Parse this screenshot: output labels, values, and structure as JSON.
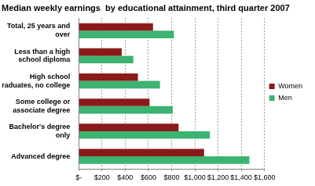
{
  "chart_data": {
    "type": "bar",
    "orientation": "horizontal",
    "title": "Median weekly earnings  by educational attainment, third quarter 2007",
    "categories": [
      "Total, 25 years and over",
      "Less than a high school diploma",
      "High school graduates, no college",
      "Some college or associate degree",
      "Bachelor's degree only",
      "Advanced degree"
    ],
    "series": [
      {
        "name": "Women",
        "color": "#8b1a1a",
        "values": [
          640,
          370,
          510,
          610,
          860,
          1080
        ]
      },
      {
        "name": "Men",
        "color": "#3cb371",
        "values": [
          820,
          470,
          700,
          810,
          1130,
          1470
        ]
      }
    ],
    "xlim": [
      0,
      1600
    ],
    "xticks": [
      {
        "value": 0,
        "label": "$-"
      },
      {
        "value": 200,
        "label": "$200"
      },
      {
        "value": 400,
        "label": "$400"
      },
      {
        "value": 600,
        "label": "$600"
      },
      {
        "value": 800,
        "label": "$800"
      },
      {
        "value": 1000,
        "label": "$1,000"
      },
      {
        "value": 1200,
        "label": "$1,200"
      },
      {
        "value": 1400,
        "label": "$1,400"
      },
      {
        "value": 1600,
        "label": "$1,600"
      }
    ],
    "grid": true,
    "legend": "right"
  }
}
